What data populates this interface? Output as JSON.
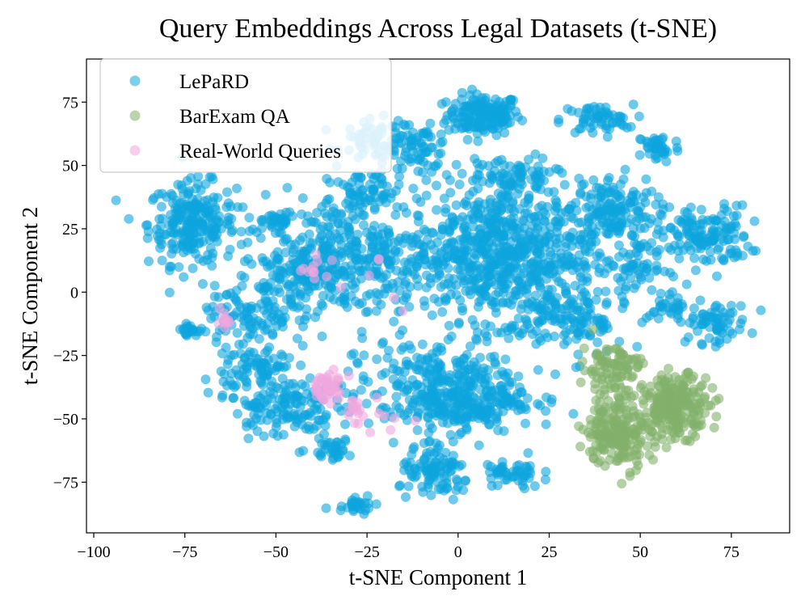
{
  "chart_data": {
    "type": "scatter",
    "title": "Query Embeddings Across Legal Datasets (t-SNE)",
    "xlabel": "t-SNE Component 1",
    "ylabel": "t-SNE Component 2",
    "xlim": [
      -102,
      91
    ],
    "ylim": [
      -95,
      92
    ],
    "xticks": [
      -100,
      -75,
      -50,
      -25,
      0,
      25,
      50,
      75
    ],
    "yticks": [
      -75,
      -50,
      -25,
      0,
      25,
      50,
      75
    ],
    "grid": false,
    "legend_position": "top-left",
    "series": [
      {
        "name": "LePaRD",
        "color": "#0ea5dd",
        "clusters": [
          {
            "cx": 7,
            "cy": 70,
            "sx": 5,
            "sy": 4,
            "n": 170
          },
          {
            "cx": -73,
            "cy": 27,
            "sx": 6,
            "sy": 8,
            "n": 240
          },
          {
            "cx": -22,
            "cy": 60,
            "sx": 5,
            "sy": 4,
            "n": 70
          },
          {
            "cx": -10,
            "cy": 57,
            "sx": 4,
            "sy": 4,
            "n": 60
          },
          {
            "cx": 38,
            "cy": 68,
            "sx": 5,
            "sy": 3,
            "n": 60
          },
          {
            "cx": 55,
            "cy": 57,
            "sx": 3,
            "sy": 3,
            "n": 40
          },
          {
            "cx": 42,
            "cy": 32,
            "sx": 6,
            "sy": 7,
            "n": 150
          },
          {
            "cx": 68,
            "cy": 22,
            "sx": 6,
            "sy": 6,
            "n": 140
          },
          {
            "cx": 70,
            "cy": -12,
            "sx": 5,
            "sy": 4,
            "n": 70
          },
          {
            "cx": 12,
            "cy": 15,
            "sx": 13,
            "sy": 13,
            "n": 700
          },
          {
            "cx": -30,
            "cy": 15,
            "sx": 12,
            "sy": 12,
            "n": 350
          },
          {
            "cx": -8,
            "cy": -38,
            "sx": 12,
            "sy": 10,
            "n": 260
          },
          {
            "cx": 5,
            "cy": -42,
            "sx": 8,
            "sy": 6,
            "n": 180
          },
          {
            "cx": -48,
            "cy": -45,
            "sx": 7,
            "sy": 6,
            "n": 140
          },
          {
            "cx": -58,
            "cy": -10,
            "sx": 6,
            "sy": 6,
            "n": 90
          },
          {
            "cx": -55,
            "cy": -30,
            "sx": 5,
            "sy": 5,
            "n": 80
          },
          {
            "cx": -6,
            "cy": -72,
            "sx": 5,
            "sy": 5,
            "n": 100
          },
          {
            "cx": 15,
            "cy": -72,
            "sx": 4,
            "sy": 3,
            "n": 50
          },
          {
            "cx": -35,
            "cy": -62,
            "sx": 3,
            "sy": 2,
            "n": 35
          },
          {
            "cx": -28,
            "cy": -83,
            "sx": 3,
            "sy": 2,
            "n": 30
          },
          {
            "cx": -74,
            "cy": -15,
            "sx": 1.2,
            "sy": 1,
            "n": 25
          },
          {
            "cx": 50,
            "cy": 10,
            "sx": 4,
            "sy": 4,
            "n": 50
          },
          {
            "cx": 58,
            "cy": -5,
            "sx": 3,
            "sy": 3,
            "n": 30
          },
          {
            "cx": -50,
            "cy": 28,
            "sx": 3,
            "sy": 2,
            "n": 35
          },
          {
            "cx": -25,
            "cy": 40,
            "sx": 5,
            "sy": 4,
            "n": 60
          },
          {
            "cx": 15,
            "cy": 45,
            "sx": 6,
            "sy": 4,
            "n": 80
          },
          {
            "cx": 30,
            "cy": -10,
            "sx": 8,
            "sy": 8,
            "n": 150
          },
          {
            "cx": -45,
            "cy": 5,
            "sx": 6,
            "sy": 6,
            "n": 100
          }
        ]
      },
      {
        "name": "BarExam QA",
        "color": "#82b06a",
        "clusters": [
          {
            "cx": 60,
            "cy": -45,
            "sx": 4.5,
            "sy": 6,
            "n": 220
          },
          {
            "cx": 44,
            "cy": -55,
            "sx": 4.5,
            "sy": 7,
            "n": 200
          },
          {
            "cx": 42,
            "cy": -30,
            "sx": 4,
            "sy": 5,
            "n": 90
          }
        ]
      },
      {
        "name": "Real-World Queries",
        "color": "#f0a6de",
        "clusters": [
          {
            "cx": -36,
            "cy": -37,
            "sx": 2.5,
            "sy": 3,
            "n": 45
          },
          {
            "cx": -30,
            "cy": -47,
            "sx": 2,
            "sy": 2,
            "n": 15
          },
          {
            "cx": -64,
            "cy": -12,
            "sx": 1,
            "sy": 2,
            "n": 10
          },
          {
            "cx": -40,
            "cy": 7,
            "sx": 3,
            "sy": 2,
            "n": 8
          },
          {
            "cx": -20,
            "cy": -50,
            "sx": 4,
            "sy": 3,
            "n": 8
          },
          {
            "cx": -32,
            "cy": 2,
            "sx": 8,
            "sy": 8,
            "n": 10
          }
        ]
      }
    ]
  }
}
